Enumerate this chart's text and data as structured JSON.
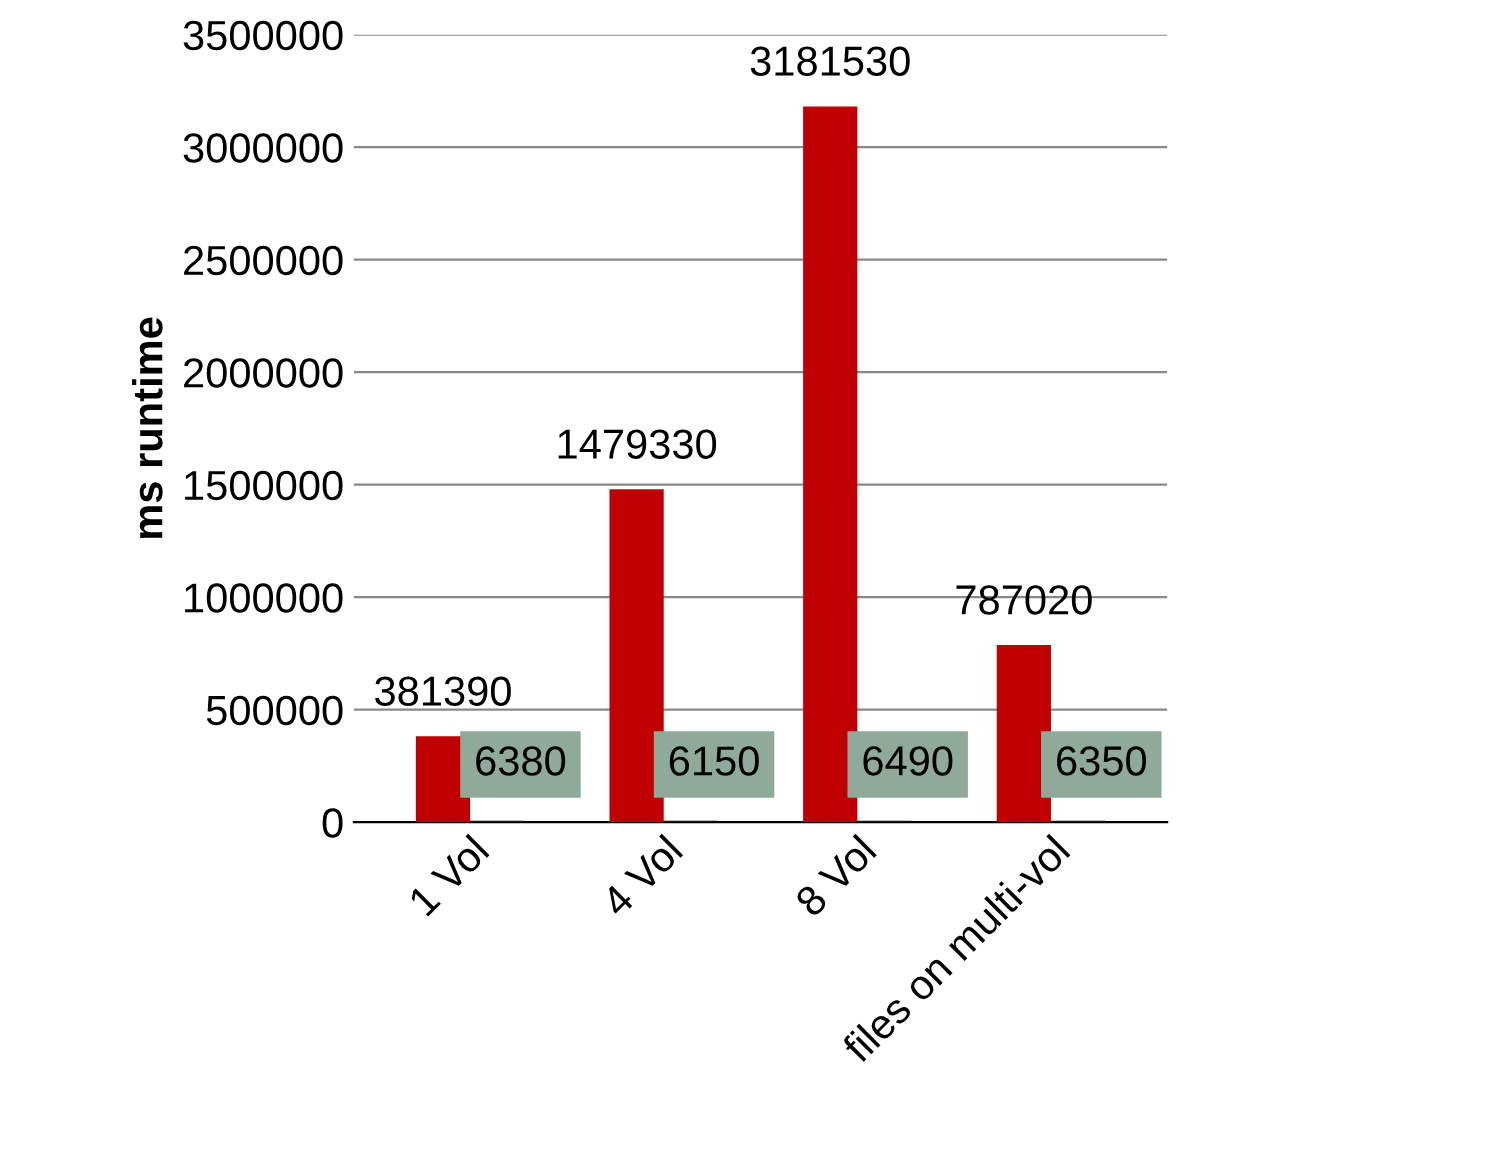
{
  "chart_data": {
    "type": "bar",
    "ylabel": "ms runtime",
    "categories": [
      "1 Vol",
      "4 Vol",
      "8 Vol",
      "files on multi-vol"
    ],
    "series": [
      {
        "color": "#c00000",
        "values": [
          381390,
          1479330,
          3181530,
          787020
        ]
      },
      {
        "color": "#111111",
        "values": [
          6380,
          6150,
          6490,
          6350
        ]
      }
    ],
    "ylim": [
      0,
      3500000
    ],
    "yticks": [
      0,
      500000,
      1000000,
      1500000,
      2000000,
      2500000,
      3000000,
      3500000
    ],
    "grid": "y",
    "data_labels": true
  }
}
